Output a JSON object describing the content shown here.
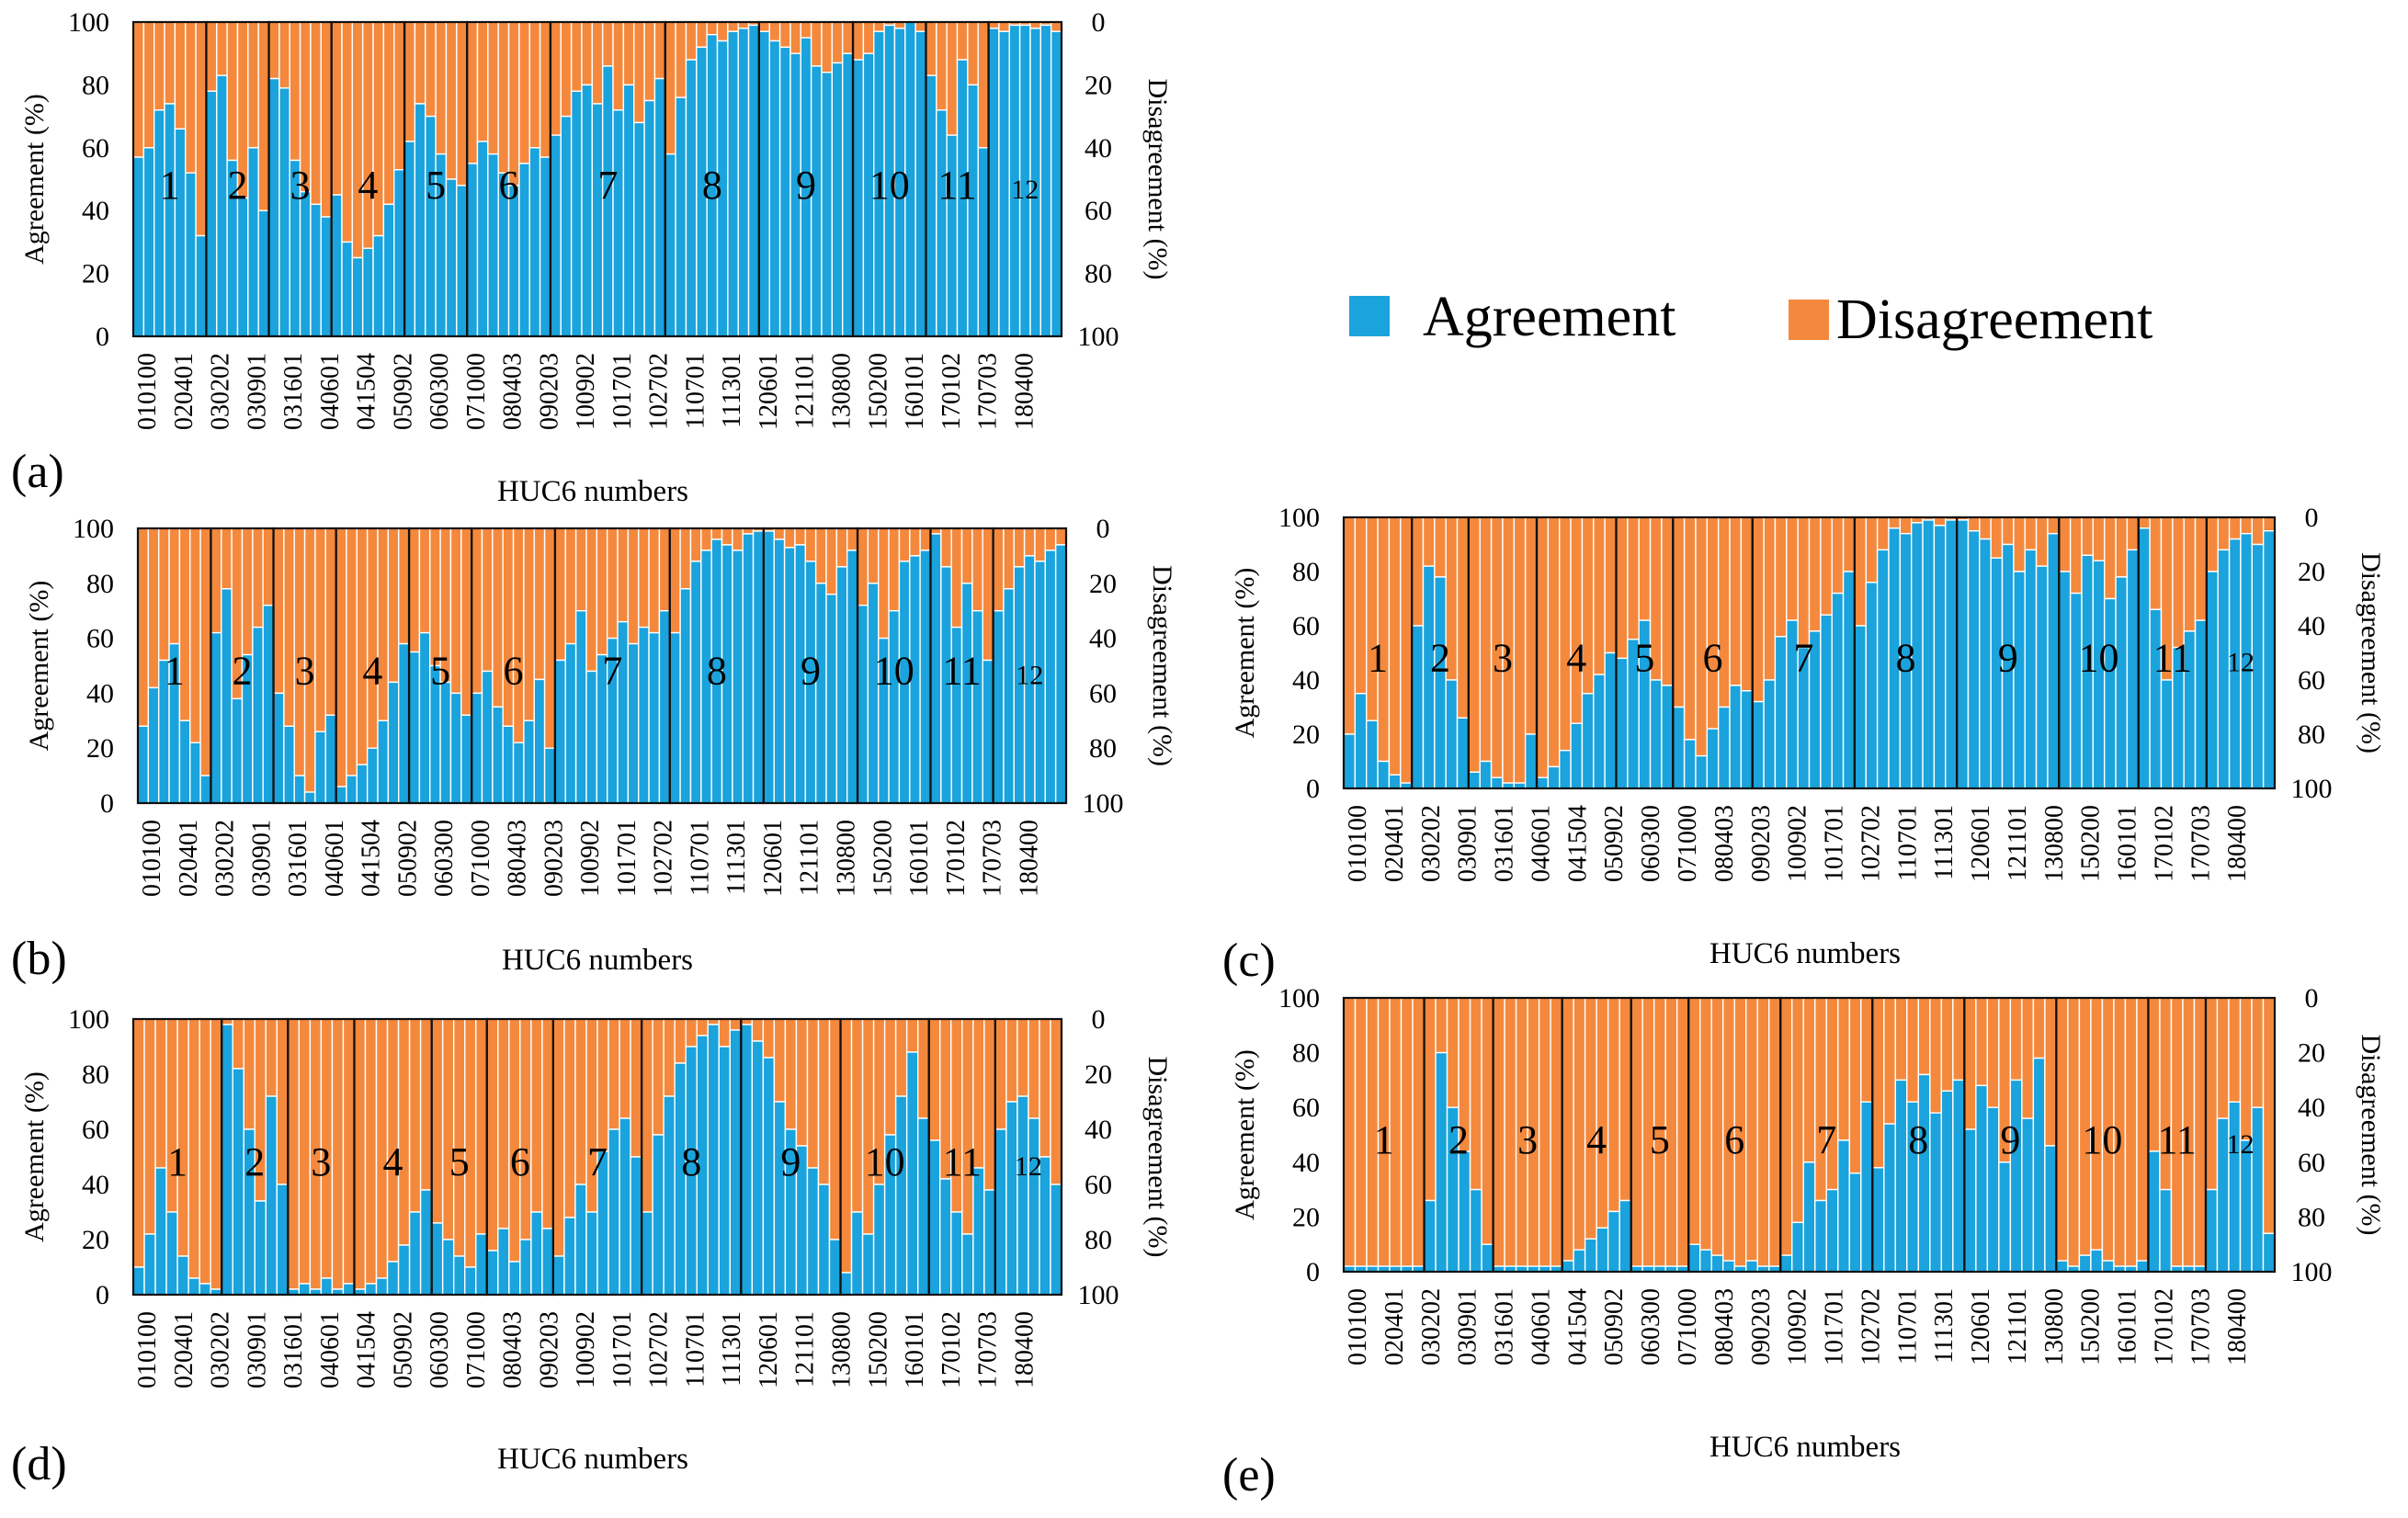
{
  "figure": {
    "x_axis_label": "HUC6 numbers",
    "left_axis_label": "Agreement (%)",
    "right_axis_label": "Disagreement (%)",
    "left_ticks": [
      "0",
      "20",
      "40",
      "60",
      "80",
      "100"
    ],
    "right_ticks": [
      "100",
      "80",
      "60",
      "40",
      "20",
      "0"
    ],
    "colors": {
      "agreement": "#1aa3dc",
      "disagreement": "#f4893d",
      "bar_separator": "#ffffff",
      "region_border": "#111111"
    }
  },
  "legend": {
    "agreement_label": "Agreement",
    "disagreement_label": "Disagreement"
  },
  "chart_data": {
    "type": "bar",
    "stacked": true,
    "series": [
      "Agreement",
      "Disagreement"
    ],
    "categories": [
      "010100",
      "020401",
      "030202",
      "030901",
      "031601",
      "040601",
      "041504",
      "050902",
      "060300",
      "071000",
      "080403",
      "090203",
      "100902",
      "101701",
      "102702",
      "110701",
      "111301",
      "120601",
      "121101",
      "130800",
      "150200",
      "160101",
      "170102",
      "170703",
      "180400"
    ],
    "region_labels": [
      "1",
      "2",
      "3",
      "4",
      "5",
      "6",
      "7",
      "8",
      "9",
      "10",
      "11",
      "12"
    ],
    "ylim": [
      0,
      100
    ],
    "y2lim": [
      100,
      0
    ],
    "panels": [
      {
        "tag": "(a)",
        "regions": [
          {
            "label": "1",
            "agreement": [
              57,
              60,
              72,
              74,
              66,
              52,
              32
            ]
          },
          {
            "label": "2",
            "agreement": [
              78,
              83,
              56,
              44,
              60,
              40
            ]
          },
          {
            "label": "3",
            "agreement": [
              82,
              79,
              56,
              46,
              42,
              38
            ]
          },
          {
            "label": "4",
            "agreement": [
              45,
              30,
              25,
              28,
              32,
              42,
              53
            ]
          },
          {
            "label": "5",
            "agreement": [
              62,
              74,
              70,
              58,
              50,
              48
            ]
          },
          {
            "label": "6",
            "agreement": [
              55,
              62,
              58,
              52,
              48,
              55,
              60,
              57
            ]
          },
          {
            "label": "7",
            "agreement": [
              64,
              70,
              78,
              80,
              74,
              86,
              72,
              80,
              68,
              75,
              82
            ]
          },
          {
            "label": "8",
            "agreement": [
              58,
              76,
              88,
              92,
              96,
              94,
              97,
              98,
              99
            ]
          },
          {
            "label": "9",
            "agreement": [
              97,
              94,
              92,
              90,
              95,
              86,
              84,
              87,
              90
            ]
          },
          {
            "label": "10",
            "agreement": [
              88,
              90,
              97,
              99,
              98,
              100,
              97
            ]
          },
          {
            "label": "11",
            "agreement": [
              83,
              72,
              64,
              88,
              80,
              60
            ]
          },
          {
            "label": "12",
            "agreement": [
              98,
              97,
              99,
              99,
              98,
              99,
              97
            ]
          }
        ]
      },
      {
        "tag": "(b)",
        "regions": [
          {
            "label": "1",
            "agreement": [
              28,
              42,
              52,
              58,
              30,
              22,
              10
            ]
          },
          {
            "label": "2",
            "agreement": [
              62,
              78,
              38,
              54,
              64,
              72
            ]
          },
          {
            "label": "3",
            "agreement": [
              40,
              28,
              10,
              4,
              26,
              32
            ]
          },
          {
            "label": "4",
            "agreement": [
              6,
              10,
              14,
              20,
              30,
              44,
              58
            ]
          },
          {
            "label": "5",
            "agreement": [
              55,
              62,
              50,
              44,
              40,
              32
            ]
          },
          {
            "label": "6",
            "agreement": [
              40,
              48,
              35,
              28,
              22,
              30,
              45,
              20
            ]
          },
          {
            "label": "7",
            "agreement": [
              52,
              58,
              70,
              48,
              54,
              60,
              66,
              58,
              64,
              62,
              70
            ]
          },
          {
            "label": "8",
            "agreement": [
              62,
              78,
              88,
              92,
              96,
              94,
              92,
              98,
              99
            ]
          },
          {
            "label": "9",
            "agreement": [
              99,
              96,
              93,
              94,
              88,
              80,
              76,
              86,
              92
            ]
          },
          {
            "label": "10",
            "agreement": [
              72,
              80,
              60,
              70,
              88,
              90,
              92
            ]
          },
          {
            "label": "11",
            "agreement": [
              98,
              86,
              64,
              80,
              70,
              52
            ]
          },
          {
            "label": "12",
            "agreement": [
              70,
              78,
              86,
              90,
              88,
              92,
              94
            ]
          }
        ]
      },
      {
        "tag": "(c)",
        "regions": [
          {
            "label": "1",
            "agreement": [
              20,
              35,
              25,
              10,
              5,
              2
            ]
          },
          {
            "label": "2",
            "agreement": [
              60,
              82,
              78,
              40,
              26
            ]
          },
          {
            "label": "3",
            "agreement": [
              6,
              10,
              4,
              2,
              2,
              20
            ]
          },
          {
            "label": "4",
            "agreement": [
              4,
              8,
              14,
              24,
              35,
              42,
              50
            ]
          },
          {
            "label": "5",
            "agreement": [
              48,
              55,
              62,
              40,
              38
            ]
          },
          {
            "label": "6",
            "agreement": [
              30,
              18,
              12,
              22,
              30,
              38,
              36
            ]
          },
          {
            "label": "7",
            "agreement": [
              32,
              40,
              56,
              62,
              52,
              58,
              64,
              72,
              80
            ]
          },
          {
            "label": "8",
            "agreement": [
              60,
              76,
              88,
              96,
              94,
              98,
              99,
              97,
              99
            ]
          },
          {
            "label": "9",
            "agreement": [
              99,
              95,
              92,
              85,
              90,
              80,
              88,
              82,
              94
            ]
          },
          {
            "label": "10",
            "agreement": [
              80,
              72,
              86,
              84,
              70,
              78,
              88
            ]
          },
          {
            "label": "11",
            "agreement": [
              96,
              66,
              40,
              52,
              58,
              62
            ]
          },
          {
            "label": "12",
            "agreement": [
              80,
              88,
              92,
              94,
              90,
              95
            ]
          }
        ]
      },
      {
        "tag": "(d)",
        "regions": [
          {
            "label": "1",
            "agreement": [
              10,
              22,
              46,
              30,
              14,
              6,
              4,
              2
            ]
          },
          {
            "label": "2",
            "agreement": [
              98,
              82,
              60,
              34,
              72,
              40
            ]
          },
          {
            "label": "3",
            "agreement": [
              2,
              4,
              2,
              6,
              2,
              4
            ]
          },
          {
            "label": "4",
            "agreement": [
              2,
              4,
              6,
              12,
              18,
              30,
              38
            ]
          },
          {
            "label": "5",
            "agreement": [
              26,
              20,
              14,
              10,
              22
            ]
          },
          {
            "label": "6",
            "agreement": [
              16,
              24,
              12,
              20,
              30,
              24
            ]
          },
          {
            "label": "7",
            "agreement": [
              14,
              28,
              40,
              30,
              52,
              60,
              64,
              50
            ]
          },
          {
            "label": "8",
            "agreement": [
              30,
              58,
              72,
              84,
              90,
              94,
              98,
              90,
              96
            ]
          },
          {
            "label": "9",
            "agreement": [
              98,
              92,
              86,
              70,
              60,
              54,
              46,
              40,
              20
            ]
          },
          {
            "label": "10",
            "agreement": [
              8,
              30,
              22,
              40,
              58,
              72,
              88,
              64
            ]
          },
          {
            "label": "11",
            "agreement": [
              56,
              42,
              30,
              22,
              46,
              38
            ]
          },
          {
            "label": "12",
            "agreement": [
              60,
              70,
              72,
              64,
              50,
              40
            ]
          }
        ]
      },
      {
        "tag": "(e)",
        "regions": [
          {
            "label": "1",
            "agreement": [
              2,
              2,
              2,
              2,
              2,
              2,
              2
            ]
          },
          {
            "label": "2",
            "agreement": [
              26,
              80,
              60,
              44,
              30,
              10
            ]
          },
          {
            "label": "3",
            "agreement": [
              2,
              2,
              2,
              2,
              2,
              2
            ]
          },
          {
            "label": "4",
            "agreement": [
              4,
              8,
              12,
              16,
              22,
              26
            ]
          },
          {
            "label": "5",
            "agreement": [
              2,
              2,
              2,
              2,
              2
            ]
          },
          {
            "label": "6",
            "agreement": [
              10,
              8,
              6,
              4,
              2,
              4,
              2,
              2
            ]
          },
          {
            "label": "7",
            "agreement": [
              6,
              18,
              40,
              26,
              30,
              48,
              36,
              62
            ]
          },
          {
            "label": "8",
            "agreement": [
              38,
              54,
              70,
              62,
              72,
              58,
              66,
              70
            ]
          },
          {
            "label": "9",
            "agreement": [
              52,
              68,
              60,
              40,
              70,
              56,
              78,
              46
            ]
          },
          {
            "label": "10",
            "agreement": [
              4,
              2,
              6,
              8,
              4,
              2,
              2,
              4
            ]
          },
          {
            "label": "11",
            "agreement": [
              44,
              30,
              2,
              2,
              2
            ]
          },
          {
            "label": "12",
            "agreement": [
              30,
              56,
              62,
              48,
              60,
              14
            ]
          }
        ]
      }
    ]
  }
}
